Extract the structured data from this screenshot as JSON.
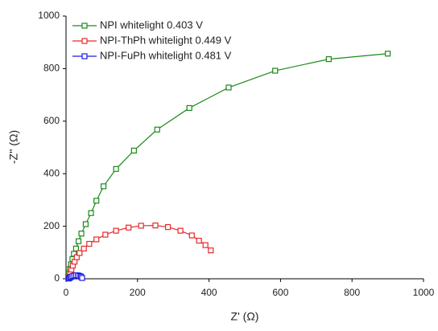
{
  "chart_data": {
    "type": "scatter-line",
    "xlabel": "Z' (Ω)",
    "ylabel": "-Z'' (Ω)",
    "xlim": [
      0,
      1000
    ],
    "xticks": [
      0,
      200,
      400,
      600,
      800,
      1000
    ],
    "ylim": [
      0,
      1000
    ],
    "yticks": [
      0,
      200,
      400,
      600,
      800,
      1000
    ],
    "legend": "upper-left",
    "series": [
      {
        "name": "NPI whitelight 0.403 V",
        "color": "#1a8a1a",
        "x": [
          6,
          8,
          11,
          14,
          18,
          22,
          28,
          35,
          43,
          55,
          70,
          85,
          105,
          140,
          190,
          255,
          345,
          455,
          585,
          735,
          900
        ],
        "values": [
          8,
          22,
          38,
          55,
          75,
          95,
          115,
          143,
          172,
          208,
          250,
          297,
          352,
          418,
          488,
          568,
          650,
          728,
          792,
          836,
          857
        ]
      },
      {
        "name": "NPI-ThPh whitelight 0.449 V",
        "color": "#e8292b",
        "x": [
          9,
          12,
          15,
          19,
          24,
          30,
          38,
          50,
          65,
          85,
          110,
          140,
          175,
          210,
          250,
          285,
          320,
          352,
          372,
          390,
          405
        ],
        "values": [
          8,
          20,
          35,
          50,
          65,
          82,
          98,
          115,
          133,
          150,
          168,
          183,
          195,
          202,
          203,
          197,
          183,
          165,
          145,
          128,
          108
        ]
      },
      {
        "name": "NPI-FuPh whitelight 0.481 V",
        "color": "#1a1ae0",
        "x": [
          8,
          11,
          14,
          18,
          23,
          28,
          33,
          38,
          42,
          45
        ],
        "values": [
          1,
          4,
          7,
          10,
          12,
          13,
          13,
          11,
          8,
          3
        ]
      }
    ]
  }
}
